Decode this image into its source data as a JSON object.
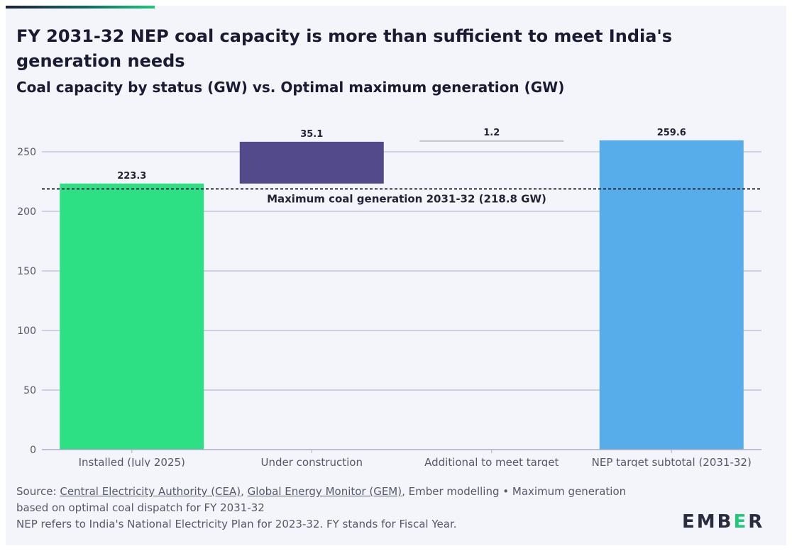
{
  "header": {
    "title": "FY 2031-32 NEP coal capacity is more than sufficient to meet India's generation needs",
    "subtitle": "Coal capacity by status (GW) vs. Optimal maximum generation (GW)"
  },
  "chart_data": {
    "type": "bar",
    "subtype": "waterfall",
    "categories": [
      "Installed (July 2025)",
      "Under construction",
      "Additional to meet target",
      "NEP target subtotal (2031-32)"
    ],
    "steps": [
      {
        "category": "Installed (July 2025)",
        "base": 0,
        "value": 223.3,
        "label": "223.3",
        "color": "#2ee084"
      },
      {
        "category": "Under construction",
        "base": 223.3,
        "value": 35.1,
        "label": "35.1",
        "color": "#534a8b"
      },
      {
        "category": "Additional to meet target",
        "base": 258.4,
        "value": 1.2,
        "label": "1.2",
        "color": "#c4c6c8"
      },
      {
        "category": "NEP target subtotal (2031-32)",
        "base": 0,
        "value": 259.6,
        "label": "259.6",
        "color": "#57ade9"
      }
    ],
    "reference_line": {
      "value": 218.8,
      "label": "Maximum coal generation 2031-32 (218.8 GW)",
      "style": "dashed"
    },
    "y_ticks": [
      0,
      50,
      100,
      150,
      200,
      250
    ],
    "ylim": [
      0,
      275
    ],
    "grid": true,
    "xlabel": "",
    "ylabel": ""
  },
  "footer": {
    "source_prefix": "Source: ",
    "source_cea": "Central Electricity Authority (CEA)",
    "sep1": ", ",
    "source_gem": "Global Energy Monitor (GEM)",
    "source_rest": ", Ember modelling • Maximum generation based on optimal coal dispatch for FY 2031-32",
    "note": "NEP refers to India's National Electricity Plan for 2023-32. FY stands for Fiscal Year."
  },
  "logo": {
    "left": "EMB",
    "mid": "E",
    "right": "R"
  }
}
